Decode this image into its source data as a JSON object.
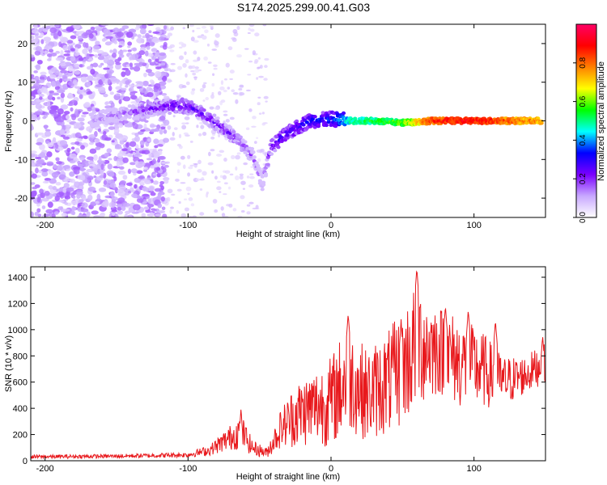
{
  "title": "S174.2025.299.00.41.G03",
  "chart_data": [
    {
      "type": "heatmap",
      "xlabel": "Height of straight line (km)",
      "ylabel": "Frequency (Hz)",
      "xlim": [
        -210,
        150
      ],
      "ylim": [
        -25,
        25
      ],
      "xticks": [
        -200,
        -100,
        0,
        100
      ],
      "yticks": [
        -20,
        -10,
        0,
        10,
        20
      ],
      "colorbar": {
        "label": "Normalized spectral amplitude",
        "range": [
          0,
          1
        ],
        "ticks": [
          0.0,
          0.2,
          0.4,
          0.6,
          0.8
        ],
        "colormap": [
          "#ffffff",
          "#c8a8ff",
          "#7a00ff",
          "#0000ff",
          "#00ffff",
          "#00ff00",
          "#ffff00",
          "#ff8000",
          "#ff0000",
          "#ff0066"
        ]
      },
      "ridge": [
        {
          "x": -165,
          "freq": 0.5,
          "amp": 0.12
        },
        {
          "x": -150,
          "freq": 1.5,
          "amp": 0.14
        },
        {
          "x": -135,
          "freq": 2.5,
          "amp": 0.18
        },
        {
          "x": -120,
          "freq": 3.5,
          "amp": 0.22
        },
        {
          "x": -105,
          "freq": 4.0,
          "amp": 0.25
        },
        {
          "x": -95,
          "freq": 3.0,
          "amp": 0.24
        },
        {
          "x": -85,
          "freq": 0.5,
          "amp": 0.22
        },
        {
          "x": -75,
          "freq": -2.0,
          "amp": 0.22
        },
        {
          "x": -65,
          "freq": -5.0,
          "amp": 0.2
        },
        {
          "x": -55,
          "freq": -9.0,
          "amp": 0.16
        },
        {
          "x": -48,
          "freq": -16.0,
          "amp": 0.12
        },
        {
          "x": -42,
          "freq": -7.0,
          "amp": 0.25
        },
        {
          "x": -35,
          "freq": -4.5,
          "amp": 0.28
        },
        {
          "x": -25,
          "freq": -2.0,
          "amp": 0.3
        },
        {
          "x": -15,
          "freq": 0.0,
          "amp": 0.32
        },
        {
          "x": 0,
          "freq": 0.5,
          "amp": 0.34
        },
        {
          "x": 15,
          "freq": 0.0,
          "amp": 0.5
        },
        {
          "x": 30,
          "freq": 0.0,
          "amp": 0.55
        },
        {
          "x": 50,
          "freq": -0.5,
          "amp": 0.6
        },
        {
          "x": 70,
          "freq": 0.0,
          "amp": 0.85
        },
        {
          "x": 90,
          "freq": 0.0,
          "amp": 0.9
        },
        {
          "x": 110,
          "freq": 0.0,
          "amp": 0.88
        },
        {
          "x": 130,
          "freq": 0.0,
          "amp": 0.8
        },
        {
          "x": 148,
          "freq": 0.0,
          "amp": 0.75
        }
      ]
    },
    {
      "type": "line",
      "xlabel": "Height of straight line (km)",
      "ylabel": "SNR (10 * v/v)",
      "xlim": [
        -210,
        150
      ],
      "ylim": [
        0,
        1480
      ],
      "xticks": [
        -200,
        -100,
        0,
        100
      ],
      "yticks": [
        0,
        200,
        400,
        600,
        800,
        1000,
        1200,
        1400
      ],
      "color": "#e8181c",
      "envelope": [
        {
          "x": -210,
          "mean": 30,
          "amp": 15
        },
        {
          "x": -150,
          "mean": 35,
          "amp": 15
        },
        {
          "x": -100,
          "mean": 45,
          "amp": 20
        },
        {
          "x": -85,
          "mean": 80,
          "amp": 40
        },
        {
          "x": -70,
          "mean": 180,
          "amp": 100
        },
        {
          "x": -63,
          "mean": 230,
          "amp": 140
        },
        {
          "x": -55,
          "mean": 100,
          "amp": 60
        },
        {
          "x": -45,
          "mean": 60,
          "amp": 40
        },
        {
          "x": -35,
          "mean": 250,
          "amp": 150
        },
        {
          "x": -25,
          "mean": 350,
          "amp": 250
        },
        {
          "x": -10,
          "mean": 420,
          "amp": 300
        },
        {
          "x": 0,
          "mean": 450,
          "amp": 350
        },
        {
          "x": 12,
          "mean": 650,
          "amp": 420
        },
        {
          "x": 25,
          "mean": 500,
          "amp": 350
        },
        {
          "x": 40,
          "mean": 600,
          "amp": 400
        },
        {
          "x": 50,
          "mean": 700,
          "amp": 450
        },
        {
          "x": 60,
          "mean": 900,
          "amp": 500
        },
        {
          "x": 75,
          "mean": 850,
          "amp": 350
        },
        {
          "x": 90,
          "mean": 750,
          "amp": 350
        },
        {
          "x": 105,
          "mean": 700,
          "amp": 300
        },
        {
          "x": 120,
          "mean": 600,
          "amp": 200
        },
        {
          "x": 135,
          "mean": 650,
          "amp": 150
        },
        {
          "x": 150,
          "mean": 750,
          "amp": 150
        }
      ],
      "peaks": [
        {
          "x": -63,
          "y": 390
        },
        {
          "x": 12,
          "y": 1120
        },
        {
          "x": 49,
          "y": 1050
        },
        {
          "x": 60,
          "y": 1465
        },
        {
          "x": 80,
          "y": 1180
        },
        {
          "x": 96,
          "y": 1150
        },
        {
          "x": 115,
          "y": 1070
        },
        {
          "x": 148,
          "y": 950
        }
      ]
    }
  ]
}
